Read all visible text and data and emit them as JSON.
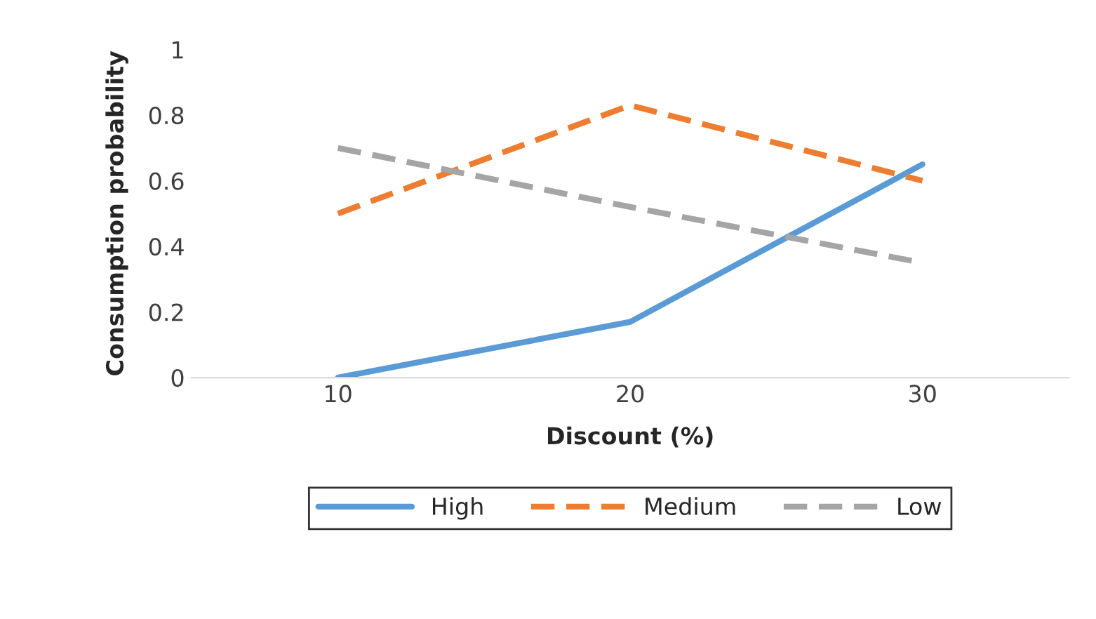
{
  "chart_data": {
    "type": "line",
    "xlabel": "Discount (%)",
    "ylabel": "Consumption probability",
    "categories": [
      "10",
      "20",
      "30"
    ],
    "series": [
      {
        "name": "High",
        "color": "#5b9bd5",
        "values": [
          0,
          0.17,
          0.65
        ],
        "line_style": "solid"
      },
      {
        "name": "Medium",
        "color": "#ed7d31",
        "values": [
          0.5,
          0.83,
          0.6
        ],
        "line_style": "dashed"
      },
      {
        "name": "Low",
        "color": "#a5a5a5",
        "values": [
          0.7,
          0.52,
          0.35
        ],
        "line_style": "dashed"
      }
    ],
    "ylim": [
      0,
      1
    ],
    "yticks": [
      0,
      {
        "value": 0.2,
        "label": "0.2"
      },
      {
        "value": 0.4,
        "label": "0.4"
      },
      {
        "value": 0.6,
        "label": "0.6"
      },
      {
        "value": 0.8,
        "label": "0.8"
      },
      1
    ],
    "legend": "bottom",
    "marker": "none",
    "grid": false
  }
}
